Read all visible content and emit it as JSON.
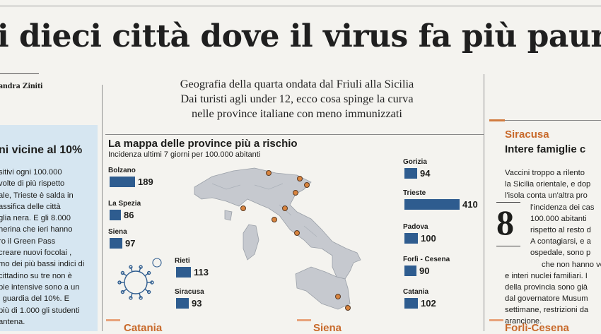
{
  "headline": "i dieci città dove il virus fa più paura",
  "byline": "andra Ziniti",
  "left_column": {
    "title": "ni vicine al 10%",
    "lines": [
      "sitivi ogni 100.000",
      "volte di più rispetto",
      "ale, Trieste è salda in",
      "assifica delle città",
      "glia nera. E gli 8.000",
      "herina che ieri hanno",
      "ro il Green Pass",
      "creare nuovi focolai ,",
      "mo dei più bassi indici di",
      "cittadino su tre non è",
      "pie intensive sono a un",
      "i guardia del 10%. E",
      "più di 1.000 gli studenti",
      "antena."
    ]
  },
  "intro": [
    "Geografia della quarta ondata dal Friuli alla Sicilia",
    "Dai turisti agli under 12, ecco cosa spinge la curva",
    "nelle province italiane con meno immunizzati"
  ],
  "chart_data": {
    "type": "bar",
    "title": "La mappa delle province più a rischio",
    "subtitle": "Incidenza ultimi 7 giorni per 100.000 abitanti",
    "categories": [
      "Bolzano",
      "La Spezia",
      "Siena",
      "Rieti",
      "Siracusa",
      "Gorizia",
      "Trieste",
      "Padova",
      "Forlì - Cesena",
      "Catania"
    ],
    "values": [
      189,
      86,
      97,
      113,
      93,
      94,
      410,
      100,
      90,
      102
    ],
    "bar_color": "#2e5c8f"
  },
  "bottom_heads": [
    "Catania",
    "Siena",
    "Forlì-Cesena"
  ],
  "right_column": {
    "city": "Siracusa",
    "title": "Intere famiglie c",
    "big_number": "8",
    "lines": [
      "Vaccini troppo a rilento",
      "la Sicilia orientale, e dop",
      "l'isola conta un'altra pro",
      "l'incidenza dei cas",
      "100.000 abitanti",
      "rispetto al resto d",
      "A contagiarsi, e a",
      "ospedale, sono p",
      "che non hanno vo",
      "e interi nuclei familiari. I",
      "della provincia sono già",
      "dal governatore Musum",
      "settimane, restrizioni da",
      "arancione."
    ]
  },
  "colors": {
    "accent": "#c8692a",
    "box_bg": "#d6e6f1",
    "bar": "#2e5c8f"
  }
}
